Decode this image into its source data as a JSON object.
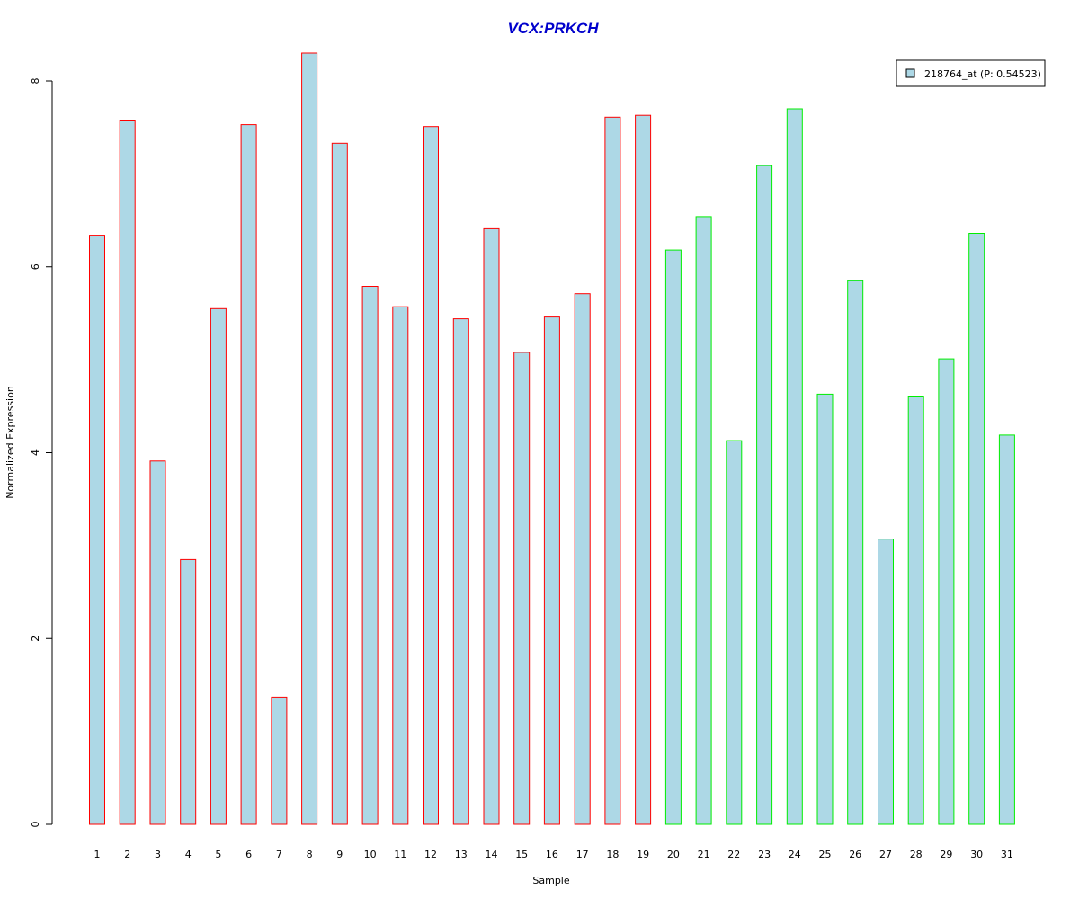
{
  "chart_data": {
    "type": "bar",
    "title": "VCX:PRKCH",
    "xlabel": "Sample",
    "ylabel": "Normalized Expression",
    "categories": [
      "1",
      "2",
      "3",
      "4",
      "5",
      "6",
      "7",
      "8",
      "9",
      "10",
      "11",
      "12",
      "13",
      "14",
      "15",
      "16",
      "17",
      "18",
      "19",
      "20",
      "21",
      "22",
      "23",
      "24",
      "25",
      "26",
      "27",
      "28",
      "29",
      "30",
      "31"
    ],
    "values": [
      6.34,
      7.57,
      3.91,
      2.85,
      5.55,
      7.53,
      1.37,
      8.3,
      7.33,
      5.79,
      5.57,
      7.51,
      5.44,
      6.41,
      5.08,
      5.46,
      5.71,
      7.61,
      7.63,
      6.18,
      6.54,
      4.13,
      7.09,
      7.7,
      4.63,
      5.85,
      3.07,
      4.6,
      5.01,
      6.36,
      4.19
    ],
    "border_colors": [
      "#ff0000",
      "#ff0000",
      "#ff0000",
      "#ff0000",
      "#ff0000",
      "#ff0000",
      "#ff0000",
      "#ff0000",
      "#ff0000",
      "#ff0000",
      "#ff0000",
      "#ff0000",
      "#ff0000",
      "#ff0000",
      "#ff0000",
      "#ff0000",
      "#ff0000",
      "#ff0000",
      "#ff0000",
      "#00ee00",
      "#00ee00",
      "#00ee00",
      "#00ee00",
      "#00ee00",
      "#00ee00",
      "#00ee00",
      "#00ee00",
      "#00ee00",
      "#00ee00",
      "#00ee00",
      "#00ee00"
    ],
    "fill_color": "#add8e6",
    "title_color": "#0000cc",
    "ylim": [
      0,
      8.5
    ],
    "yticks": [
      0,
      2,
      4,
      6,
      8
    ],
    "legend": {
      "position": "top-right",
      "label": "218764_at (P: 0.54523)"
    },
    "grid": false
  }
}
